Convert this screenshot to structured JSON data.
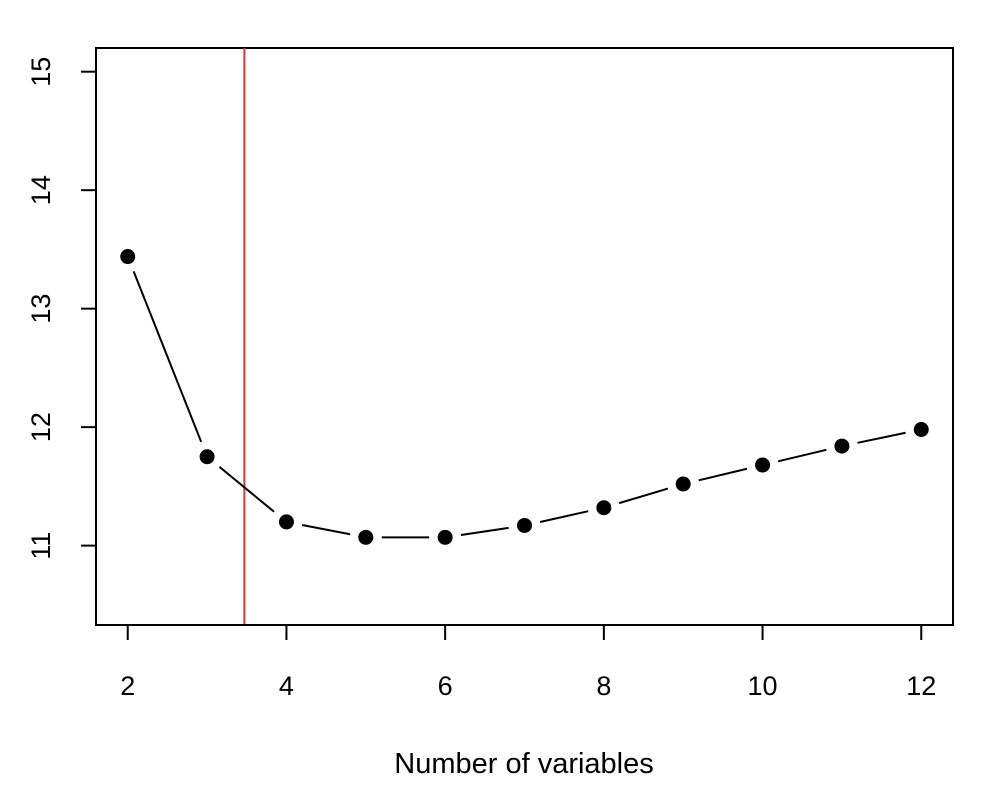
{
  "chart_data": {
    "type": "line",
    "title": "",
    "xlabel": "Number of variables",
    "ylabel": "",
    "x": [
      2,
      3,
      4,
      5,
      6,
      7,
      8,
      9,
      10,
      11,
      12
    ],
    "series": [
      {
        "values": [
          13.44,
          11.75,
          11.2,
          11.07,
          11.07,
          11.17,
          11.32,
          11.52,
          11.68,
          11.84,
          11.98
        ]
      }
    ],
    "xlim": [
      1.6,
      12.4
    ],
    "ylim": [
      10.33,
      15.2
    ],
    "xticks": [
      2,
      4,
      6,
      8,
      10,
      12
    ],
    "yticks": [
      11,
      12,
      13,
      14,
      15
    ],
    "xtick_labels": [
      "2",
      "4",
      "6",
      "8",
      "10",
      "12"
    ],
    "ytick_labels": [
      "11",
      "12",
      "13",
      "14",
      "15"
    ],
    "reference_line": {
      "orientation": "vertical",
      "x": 3.47,
      "color": "#e8312a"
    },
    "colors": {
      "line": "#000000",
      "points": "#000000",
      "reference": "#e8312a"
    },
    "grid": false,
    "legend": "none"
  }
}
